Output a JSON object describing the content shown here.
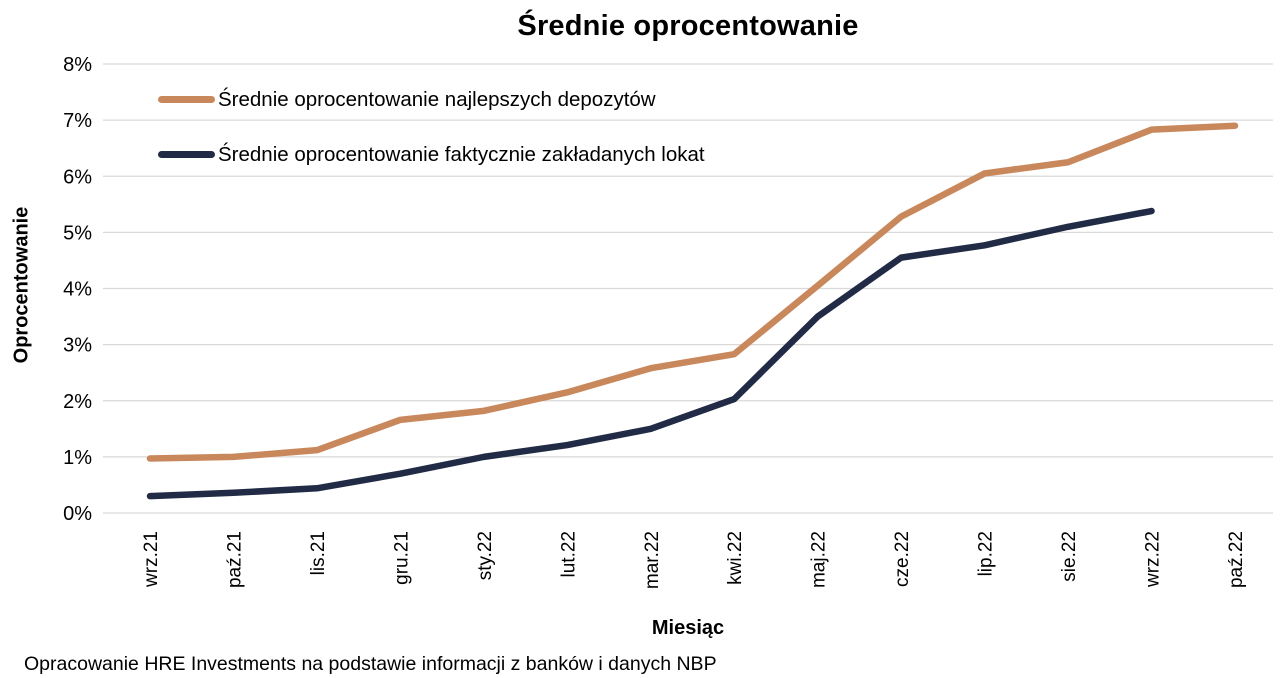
{
  "page": {
    "source_note": "Opracowanie HRE Investments na podstawie informacji z banków i danych NBP"
  },
  "colors": {
    "series_best_deposits": "#C9885C",
    "series_actual_deposits": "#212B45",
    "gridline": "#D9D9D9",
    "text": "#000000"
  },
  "chart_data": {
    "type": "line",
    "title": "Średnie oprocentowanie",
    "xlabel": "Miesiąc",
    "ylabel": "Oprocentowanie",
    "categories": [
      "wrz.21",
      "paź.21",
      "lis.21",
      "gru.21",
      "sty.22",
      "lut.22",
      "mar.22",
      "kwi.22",
      "maj.22",
      "cze.22",
      "lip.22",
      "sie.22",
      "wrz.22",
      "paź.22"
    ],
    "series": [
      {
        "name": "Średnie oprocentowanie najlepszych depozytów",
        "color": "#C9885C",
        "values": [
          0.97,
          1.0,
          1.12,
          1.66,
          1.82,
          2.15,
          2.58,
          2.83,
          4.05,
          5.28,
          6.05,
          6.25,
          6.83,
          6.9
        ]
      },
      {
        "name": "Średnie oprocentowanie faktycznie zakładanych lokat",
        "color": "#212B45",
        "values": [
          0.3,
          0.36,
          0.44,
          0.7,
          1.0,
          1.21,
          1.5,
          2.03,
          3.5,
          4.55,
          4.77,
          5.1,
          5.38,
          null
        ]
      }
    ],
    "ylim": [
      0,
      8
    ],
    "ytick_step": 1,
    "ytick_suffix": "%",
    "grid": "horizontal",
    "legend_position": "top-left-inside"
  }
}
